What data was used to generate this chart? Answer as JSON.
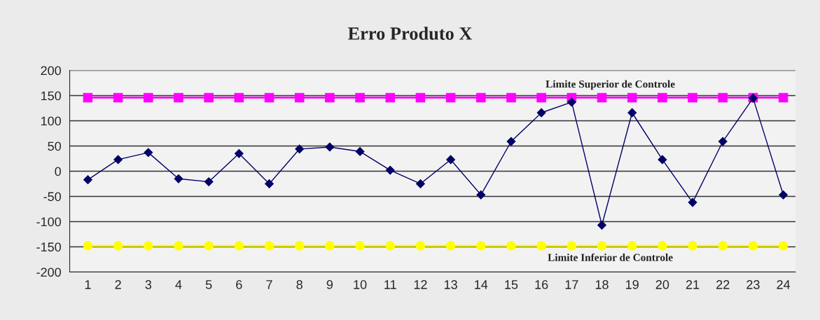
{
  "chart_data": {
    "type": "line",
    "title": "Erro Produto X",
    "categories": [
      "1",
      "2",
      "3",
      "4",
      "5",
      "6",
      "7",
      "8",
      "9",
      "10",
      "11",
      "12",
      "13",
      "14",
      "15",
      "16",
      "17",
      "18",
      "19",
      "20",
      "21",
      "22",
      "23",
      "24"
    ],
    "series": [
      {
        "color": "#000066",
        "marker": "diamond",
        "values": [
          -17,
          23,
          37,
          -15,
          -21,
          35,
          -25,
          44,
          48,
          39,
          2,
          -25,
          23,
          -47,
          59,
          116,
          137,
          -107,
          116,
          23,
          -62,
          59,
          145,
          -47
        ]
      },
      {
        "name": "Limite Superior de Controle",
        "color": "#ff00ff",
        "marker": "square",
        "values": [
          146,
          146,
          146,
          146,
          146,
          146,
          146,
          146,
          146,
          146,
          146,
          146,
          146,
          146,
          146,
          146,
          146,
          146,
          146,
          146,
          146,
          146,
          146,
          146
        ]
      },
      {
        "name": "Limite Inferior de Controle",
        "color": "#ffff00",
        "marker": "circle",
        "values": [
          -148,
          -148,
          -148,
          -148,
          -148,
          -148,
          -148,
          -148,
          -148,
          -148,
          -148,
          -148,
          -148,
          -148,
          -148,
          -148,
          -148,
          -148,
          -148,
          -148,
          -148,
          -148,
          -148,
          -148
        ]
      }
    ],
    "ylim": [
      -200,
      200
    ],
    "yticks": [
      -200,
      -150,
      -100,
      -50,
      0,
      50,
      100,
      150,
      200
    ],
    "grid": "y",
    "legend": false,
    "line_style": "solid"
  }
}
